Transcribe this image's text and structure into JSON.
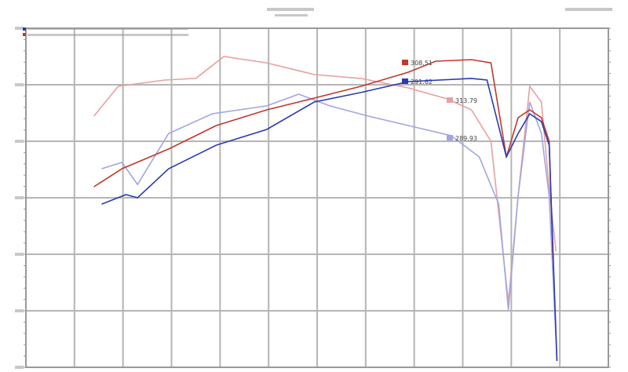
{
  "chart_data": {
    "type": "line",
    "title": "",
    "xlabel": "",
    "ylabel": "",
    "xlim": [
      1000,
      7000
    ],
    "ylim": [
      50,
      350
    ],
    "grid": true,
    "legend": "top-left",
    "series": [
      {
        "color": "#c0392b",
        "x": [
          1700,
          1990,
          2470,
          2960,
          3480,
          3970,
          4450,
          4940,
          5220,
          5590,
          5790,
          5950,
          6070,
          6190,
          6310,
          6390,
          6430
        ],
        "y": [
          209.7,
          225.7,
          243.1,
          263.9,
          277.8,
          288.2,
          298.6,
          311.1,
          320.8,
          322.2,
          319.4,
          236.1,
          270.8,
          277.8,
          270.8,
          250,
          145.8
        ]
      },
      {
        "color": "#2a3bb0",
        "x": [
          1780,
          2030,
          2150,
          2470,
          2960,
          3480,
          3970,
          4450,
          4940,
          5590,
          5750,
          5950,
          6070,
          6190,
          6310,
          6390,
          6470
        ],
        "y": [
          194.4,
          202.8,
          200,
          225.7,
          246.5,
          260.4,
          284.7,
          293.1,
          302.8,
          305.6,
          304.2,
          236.1,
          256.9,
          274.3,
          267.4,
          246.5,
          55.6
        ]
      },
      {
        "color": "#e8a0a0",
        "x": [
          1700,
          1950,
          2430,
          2750,
          3040,
          3480,
          3970,
          4450,
          4940,
          5340,
          5590,
          5790,
          5970,
          6070,
          6190,
          6310,
          6390,
          6460
        ],
        "y": [
          272.2,
          298.6,
          304.2,
          305.6,
          325,
          319.4,
          309,
          305.6,
          297.2,
          287.5,
          277.8,
          250,
          107.6,
          201.4,
          298.6,
          284.7,
          208.3,
          152.8
        ]
      },
      {
        "color": "#9fa6e0",
        "x": [
          1780,
          1990,
          2150,
          2470,
          2920,
          3480,
          3810,
          4130,
          4530,
          4940,
          5380,
          5670,
          5870,
          5970,
          6070,
          6190,
          6310,
          6390,
          6470
        ],
        "y": [
          225.7,
          231.3,
          211.8,
          256.9,
          274.3,
          281.3,
          291.7,
          281.3,
          272.2,
          263.9,
          254.9,
          236.1,
          194.4,
          100.7,
          201.4,
          284.7,
          256.9,
          201.4,
          55.6
        ]
      }
    ],
    "annotations": [
      {
        "text": "308.51",
        "series": 0,
        "color": "#c0392b"
      },
      {
        "text": "291.62",
        "series": 1,
        "color": "#2a3bb0"
      },
      {
        "text": "313.79",
        "series": 2,
        "color": "#e8a0a0"
      },
      {
        "text": "289.93",
        "series": 3,
        "color": "#9fa6e0"
      }
    ]
  }
}
